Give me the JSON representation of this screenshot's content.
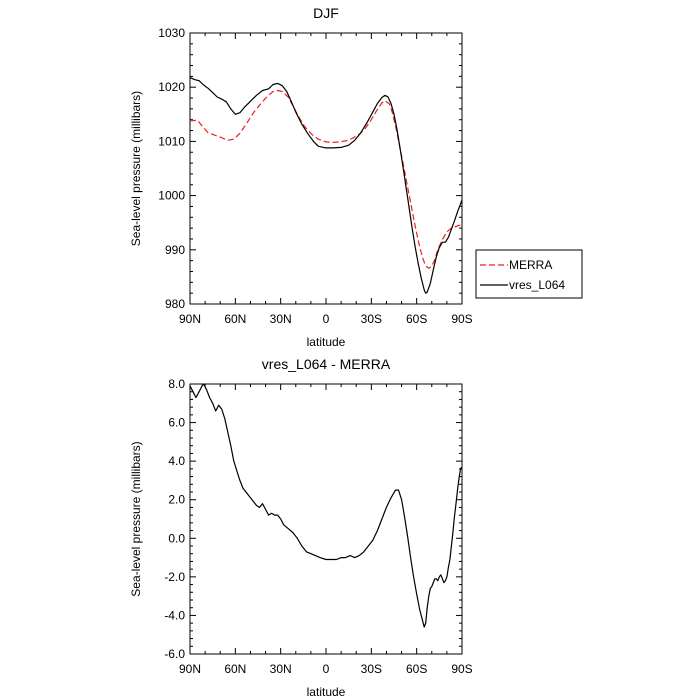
{
  "chart_data": [
    {
      "type": "line",
      "title": "DJF",
      "xlabel": "latitude",
      "ylabel": "Sea-level pressure (millibars)",
      "xlim": [
        90,
        -90
      ],
      "ylim": [
        980,
        1030
      ],
      "x_ticks": [
        90,
        60,
        30,
        0,
        -30,
        -60,
        -90
      ],
      "x_tick_labels": [
        "90N",
        "60N",
        "30N",
        "0",
        "30S",
        "60S",
        "90S"
      ],
      "y_ticks": [
        980,
        990,
        1000,
        1010,
        1020,
        1030
      ],
      "y_tick_labels": [
        "980",
        "990",
        "1000",
        "1010",
        "1020",
        "1030"
      ],
      "grid": false,
      "legend": {
        "placement": "right",
        "entries": [
          "MERRA",
          "vres_L064"
        ]
      },
      "series": [
        {
          "name": "MERRA",
          "color": "#e8231b",
          "dash": "dashed",
          "points": [
            [
              90,
              1013.8
            ],
            [
              85,
              1013.9
            ],
            [
              81,
              1012.5
            ],
            [
              78,
              1011.6
            ],
            [
              74,
              1011.2
            ],
            [
              70,
              1010.8
            ],
            [
              65,
              1010.2
            ],
            [
              61,
              1010.4
            ],
            [
              57,
              1011.5
            ],
            [
              53,
              1013.1
            ],
            [
              48,
              1015.3
            ],
            [
              43,
              1017.0
            ],
            [
              39,
              1018.3
            ],
            [
              35,
              1019.2
            ],
            [
              32,
              1019.4
            ],
            [
              29,
              1019.2
            ],
            [
              25,
              1018.2
            ],
            [
              22,
              1016.6
            ],
            [
              18,
              1014.5
            ],
            [
              14,
              1012.7
            ],
            [
              9,
              1011.2
            ],
            [
              5,
              1010.4
            ],
            [
              0,
              1009.9
            ],
            [
              -4,
              1009.8
            ],
            [
              -9,
              1009.9
            ],
            [
              -13,
              1010.1
            ],
            [
              -17,
              1010.5
            ],
            [
              -22,
              1011.3
            ],
            [
              -26,
              1012.4
            ],
            [
              -30,
              1014.0
            ],
            [
              -34,
              1015.9
            ],
            [
              -37,
              1017.1
            ],
            [
              -39,
              1017.5
            ],
            [
              -42,
              1016.9
            ],
            [
              -44,
              1015.2
            ],
            [
              -46,
              1012.9
            ],
            [
              -48,
              1010.2
            ],
            [
              -50,
              1007.3
            ],
            [
              -52,
              1004.5
            ],
            [
              -54,
              1001.6
            ],
            [
              -56,
              998.8
            ],
            [
              -58,
              995.8
            ],
            [
              -60,
              993.0
            ],
            [
              -62,
              990.5
            ],
            [
              -64,
              988.5
            ],
            [
              -66,
              987.0
            ],
            [
              -68,
              986.6
            ],
            [
              -70,
              987.0
            ],
            [
              -72,
              988.2
            ],
            [
              -74,
              990.0
            ],
            [
              -77,
              991.9
            ],
            [
              -80,
              993.3
            ],
            [
              -83,
              994.0
            ],
            [
              -86,
              994.3
            ],
            [
              -90,
              994.7
            ]
          ]
        },
        {
          "name": "vres_L064",
          "color": "#000000",
          "dash": "solid",
          "points": [
            [
              90,
              1021.8
            ],
            [
              87,
              1021.4
            ],
            [
              84,
              1021.2
            ],
            [
              81,
              1020.4
            ],
            [
              78,
              1019.8
            ],
            [
              75,
              1019.0
            ],
            [
              72,
              1018.2
            ],
            [
              69,
              1017.8
            ],
            [
              66,
              1017.3
            ],
            [
              63,
              1016.0
            ],
            [
              60,
              1015.0
            ],
            [
              57,
              1015.3
            ],
            [
              54,
              1016.3
            ],
            [
              50,
              1017.4
            ],
            [
              46,
              1018.5
            ],
            [
              42,
              1019.4
            ],
            [
              38,
              1019.7
            ],
            [
              35,
              1020.5
            ],
            [
              32,
              1020.7
            ],
            [
              29,
              1020.3
            ],
            [
              26,
              1019.2
            ],
            [
              23,
              1017.4
            ],
            [
              20,
              1015.4
            ],
            [
              16,
              1013.2
            ],
            [
              12,
              1011.4
            ],
            [
              8,
              1009.9
            ],
            [
              5,
              1009.1
            ],
            [
              0,
              1008.8
            ],
            [
              -5,
              1008.8
            ],
            [
              -10,
              1008.9
            ],
            [
              -15,
              1009.3
            ],
            [
              -19,
              1010.2
            ],
            [
              -23,
              1011.6
            ],
            [
              -27,
              1013.4
            ],
            [
              -31,
              1015.4
            ],
            [
              -34,
              1017.0
            ],
            [
              -37,
              1018.1
            ],
            [
              -39,
              1018.5
            ],
            [
              -41,
              1018.2
            ],
            [
              -43,
              1017.0
            ],
            [
              -45,
              1015.0
            ],
            [
              -47,
              1012.2
            ],
            [
              -49,
              1008.8
            ],
            [
              -51,
              1005.2
            ],
            [
              -53,
              1001.5
            ],
            [
              -55,
              997.8
            ],
            [
              -57,
              994.0
            ],
            [
              -59,
              990.5
            ],
            [
              -61,
              987.5
            ],
            [
              -63,
              984.8
            ],
            [
              -65,
              982.6
            ],
            [
              -66,
              982.0
            ],
            [
              -67,
              982.2
            ],
            [
              -69,
              983.8
            ],
            [
              -71,
              986.3
            ],
            [
              -73,
              988.7
            ],
            [
              -75,
              990.4
            ],
            [
              -77,
              991.4
            ],
            [
              -79,
              991.4
            ],
            [
              -81,
              992.3
            ],
            [
              -83,
              993.8
            ],
            [
              -85,
              995.3
            ],
            [
              -87,
              997.0
            ],
            [
              -90,
              999.2
            ]
          ]
        }
      ]
    },
    {
      "type": "line",
      "title": "vres_L064 - MERRA",
      "xlabel": "latitude",
      "ylabel": "Sea-level pressure (millibars)",
      "xlim": [
        90,
        -90
      ],
      "ylim": [
        -6,
        8
      ],
      "x_ticks": [
        90,
        60,
        30,
        0,
        -30,
        -60,
        -90
      ],
      "x_tick_labels": [
        "90N",
        "60N",
        "30N",
        "0",
        "30S",
        "60S",
        "90S"
      ],
      "y_ticks": [
        -6,
        -4,
        -2,
        0,
        2,
        4,
        6,
        8
      ],
      "y_tick_labels": [
        "-6.0",
        "-4.0",
        "-2.0",
        "0.0",
        "2.0",
        "4.0",
        "6.0",
        "8.0"
      ],
      "grid": false,
      "series": [
        {
          "color": "#000000",
          "dash": "solid",
          "points": [
            [
              90,
              7.9
            ],
            [
              88,
              7.6
            ],
            [
              86,
              7.3
            ],
            [
              84,
              7.6
            ],
            [
              82,
              7.9
            ],
            [
              81,
              8.0
            ],
            [
              79,
              7.7
            ],
            [
              77,
              7.3
            ],
            [
              75,
              7.0
            ],
            [
              73,
              6.6
            ],
            [
              71,
              6.9
            ],
            [
              69,
              6.7
            ],
            [
              67,
              6.2
            ],
            [
              65,
              5.5
            ],
            [
              63,
              4.8
            ],
            [
              61,
              4.0
            ],
            [
              59,
              3.5
            ],
            [
              57,
              3.0
            ],
            [
              55,
              2.6
            ],
            [
              52,
              2.3
            ],
            [
              49,
              2.0
            ],
            [
              46,
              1.7
            ],
            [
              44,
              1.6
            ],
            [
              42,
              1.8
            ],
            [
              40,
              1.5
            ],
            [
              38,
              1.2
            ],
            [
              36,
              1.3
            ],
            [
              34,
              1.2
            ],
            [
              32,
              1.2
            ],
            [
              30,
              1.0
            ],
            [
              28,
              0.7
            ],
            [
              25,
              0.5
            ],
            [
              22,
              0.3
            ],
            [
              19,
              0.0
            ],
            [
              16,
              -0.4
            ],
            [
              13,
              -0.7
            ],
            [
              10,
              -0.8
            ],
            [
              7,
              -0.9
            ],
            [
              4,
              -1.0
            ],
            [
              0,
              -1.1
            ],
            [
              -3,
              -1.1
            ],
            [
              -7,
              -1.1
            ],
            [
              -10,
              -1.0
            ],
            [
              -13,
              -1.0
            ],
            [
              -16,
              -0.9
            ],
            [
              -19,
              -1.0
            ],
            [
              -22,
              -0.9
            ],
            [
              -25,
              -0.7
            ],
            [
              -28,
              -0.4
            ],
            [
              -31,
              -0.1
            ],
            [
              -34,
              0.4
            ],
            [
              -37,
              1.0
            ],
            [
              -40,
              1.6
            ],
            [
              -43,
              2.1
            ],
            [
              -46,
              2.5
            ],
            [
              -48,
              2.5
            ],
            [
              -50,
              2.0
            ],
            [
              -52,
              1.1
            ],
            [
              -54,
              0.1
            ],
            [
              -56,
              -1.0
            ],
            [
              -58,
              -2.0
            ],
            [
              -60,
              -2.9
            ],
            [
              -62,
              -3.7
            ],
            [
              -64,
              -4.3
            ],
            [
              -65,
              -4.6
            ],
            [
              -66,
              -4.4
            ],
            [
              -67,
              -3.6
            ],
            [
              -68,
              -3.0
            ],
            [
              -69,
              -2.6
            ],
            [
              -70,
              -2.5
            ],
            [
              -71,
              -2.3
            ],
            [
              -72,
              -2.1
            ],
            [
              -73,
              -2.1
            ],
            [
              -74,
              -2.2
            ],
            [
              -75,
              -2.0
            ],
            [
              -76,
              -1.9
            ],
            [
              -77,
              -2.1
            ],
            [
              -78,
              -2.3
            ],
            [
              -79,
              -2.2
            ],
            [
              -80,
              -2.0
            ],
            [
              -81,
              -1.5
            ],
            [
              -82,
              -1.1
            ],
            [
              -83,
              -0.4
            ],
            [
              -84,
              0.3
            ],
            [
              -85,
              1.1
            ],
            [
              -86,
              1.8
            ],
            [
              -87,
              2.5
            ],
            [
              -88,
              3.1
            ],
            [
              -89,
              3.6
            ],
            [
              -90,
              3.7
            ]
          ]
        }
      ]
    }
  ]
}
